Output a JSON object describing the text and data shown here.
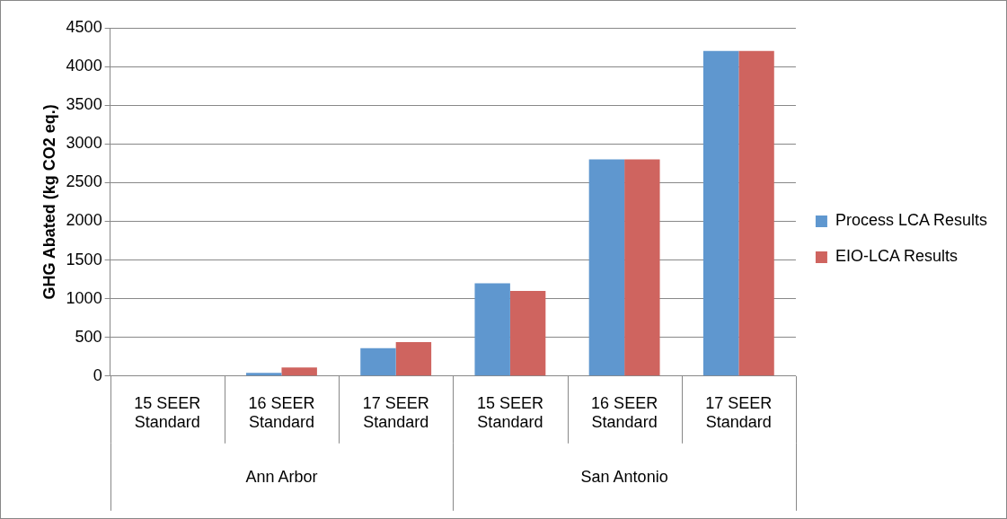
{
  "chart_data": {
    "type": "bar",
    "ylabel": "GHG Abated (kg CO2 eq.)",
    "categories": [
      "15 SEER Standard",
      "16 SEER Standard",
      "17 SEER Standard",
      "15 SEER Standard",
      "16 SEER Standard",
      "17 SEER Standard"
    ],
    "series": [
      {
        "name": "Process LCA Results",
        "color": "#5f97cf",
        "values": [
          0,
          40,
          360,
          1200,
          2800,
          4200
        ]
      },
      {
        "name": "EIO-LCA Results",
        "color": "#cf645f",
        "values": [
          0,
          110,
          440,
          1100,
          2800,
          4200
        ]
      }
    ],
    "annotations": [
      "Ann Arbor",
      "San Antonio"
    ],
    "ylim": [
      0,
      4500
    ],
    "yticks": [
      0,
      500,
      1000,
      1500,
      2000,
      2500,
      3000,
      3500,
      4000,
      4500
    ],
    "grid": "y",
    "legend": "right"
  }
}
